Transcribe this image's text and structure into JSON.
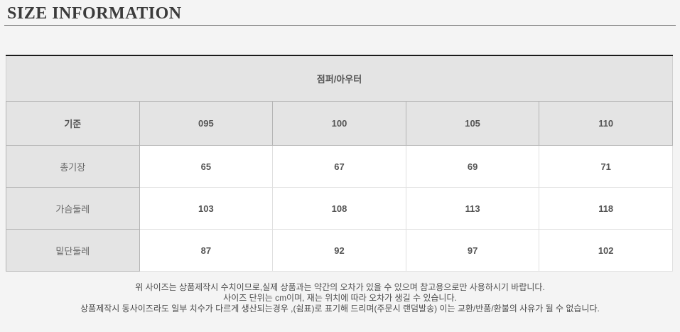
{
  "page": {
    "title": "SIZE INFORMATION"
  },
  "size_table": {
    "category_header": "점퍼/아우터",
    "columns": {
      "label": "기준",
      "sizes": [
        "095",
        "100",
        "105",
        "110"
      ]
    },
    "rows": [
      {
        "label": "총기장",
        "values": [
          "65",
          "67",
          "69",
          "71"
        ]
      },
      {
        "label": "가슴둘레",
        "values": [
          "103",
          "108",
          "113",
          "118"
        ]
      },
      {
        "label": "밑단둘레",
        "values": [
          "87",
          "92",
          "97",
          "102"
        ]
      }
    ]
  },
  "notes": {
    "lines": [
      "위 사이즈는 상품제작시 수치이므로,실제 상품과는 약간의 오차가 있을 수 있으며 참고용으로만 사용하시기 바랍니다.",
      "사이즈 단위는 cm이며, 재는 위치에 따라 오차가 생길 수 있습니다.",
      "상품제작시 동사이즈라도 일부 치수가 다르게 생산되는경우 ,(쉼표)로 표기해 드리며(주문시 랜덤발송) 이는 교환/반품/환불의 사유가 될 수 없습니다."
    ]
  },
  "colors": {
    "page_background": "#f4f4f4",
    "title_text": "#3b3b3b",
    "table_top_border": "#1b1b1b",
    "header_cell_background": "#e4e4e4",
    "header_cell_border": "#b5b5b5",
    "data_cell_background": "#ffffff",
    "data_cell_border": "#e0e0e0",
    "cell_text": "#555555",
    "note_text": "#4d4d4d"
  }
}
